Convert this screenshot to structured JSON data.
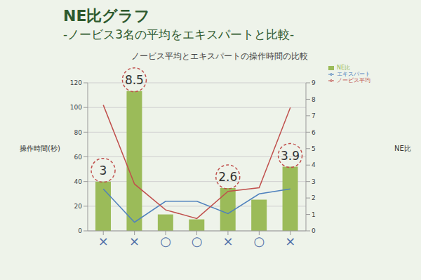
{
  "slide": {
    "title": "NE比グラフ",
    "subtitle": "-ノービス3名の平均をエキスパートと比較-"
  },
  "chart_data": {
    "type": "bar",
    "title": "ノービス平均とエキスパートの操作時間の比較",
    "categories": [
      "×",
      "×",
      "○",
      "○",
      "×",
      "○",
      "×"
    ],
    "y_label": "操作時間(秒)",
    "y2_label": "NE比",
    "ylim": [
      0,
      120
    ],
    "yticks": [
      0,
      20,
      40,
      60,
      80,
      100,
      120
    ],
    "y2lim": [
      0,
      9
    ],
    "y2ticks": [
      0,
      1,
      2,
      3,
      4,
      5,
      6,
      7,
      8,
      9
    ],
    "grid": true,
    "legend": "top-right",
    "series": [
      {
        "name": "NE比",
        "type": "bar",
        "axis": "y2",
        "color": "#9bbb59",
        "values": [
          3,
          8.5,
          1,
          0.7,
          2.6,
          1.9,
          3.9
        ],
        "value_labels": [
          "3",
          "8.5",
          null,
          null,
          "2.6",
          null,
          "3.9"
        ]
      },
      {
        "name": "エキスパート",
        "type": "line",
        "color": "#4f81bd",
        "values": [
          34,
          7,
          24,
          24,
          14,
          30,
          34
        ]
      },
      {
        "name": "ノービス平均",
        "type": "line",
        "color": "#c0504d",
        "values": [
          102,
          38,
          17,
          10,
          32,
          35,
          100
        ]
      }
    ]
  }
}
